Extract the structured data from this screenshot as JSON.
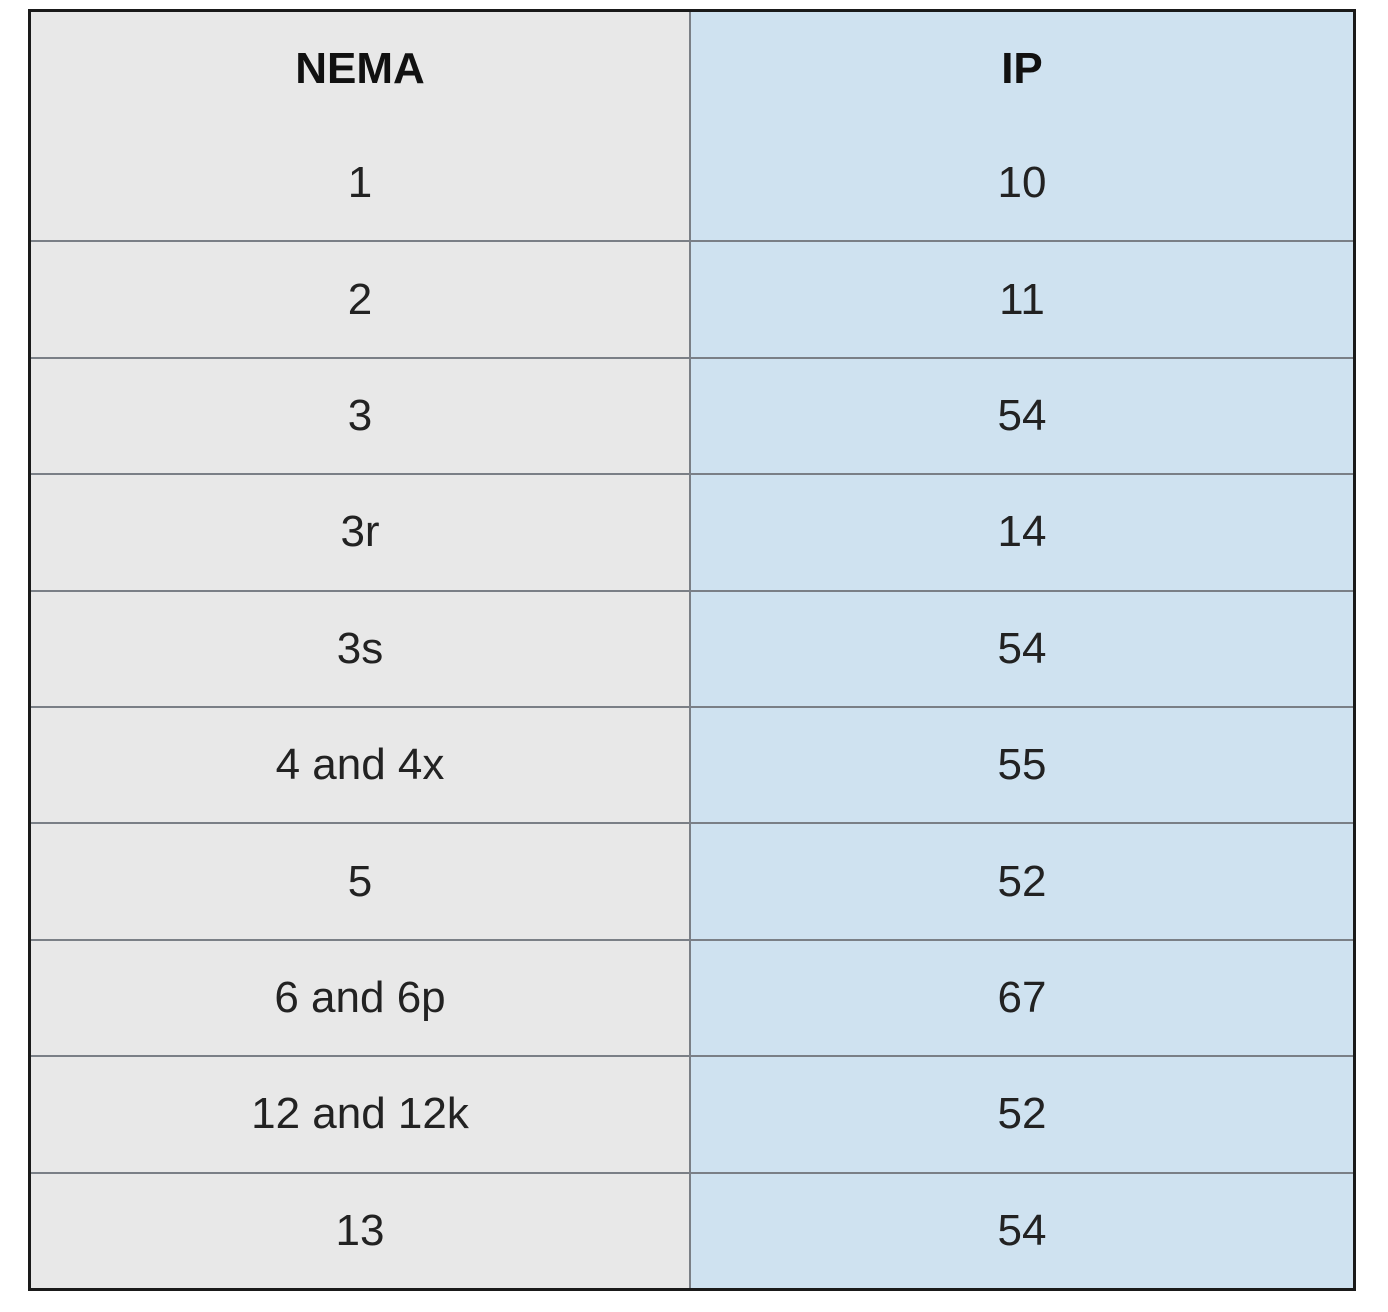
{
  "table": {
    "header": [
      "NEMA",
      "IP"
    ],
    "rows": [
      [
        "1",
        "10"
      ],
      [
        "2",
        "11"
      ],
      [
        "3",
        "54"
      ],
      [
        "3r",
        "14"
      ],
      [
        "3s",
        "54"
      ],
      [
        "4 and 4x",
        "55"
      ],
      [
        "5",
        "52"
      ],
      [
        "6 and 6p",
        "67"
      ],
      [
        "12 and 12k",
        "52"
      ],
      [
        "13",
        "54"
      ]
    ]
  }
}
